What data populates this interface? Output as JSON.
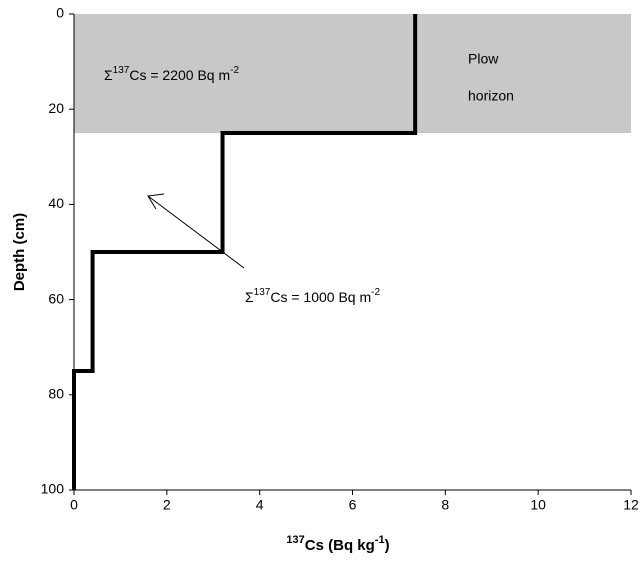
{
  "chart_data": {
    "type": "line",
    "xlabel": {
      "sup": "137",
      "text": "Cs (Bq kg",
      "sup2": "-1",
      "end": ")"
    },
    "ylabel": "Depth (cm)",
    "xlim": [
      0,
      12
    ],
    "xticks": [
      0,
      2,
      4,
      6,
      8,
      10,
      12
    ],
    "ylim": [
      0,
      100
    ],
    "yticks": [
      0,
      20,
      40,
      60,
      80,
      100
    ],
    "y_inverted": true,
    "series": [
      {
        "color": "#000000",
        "x": [
          7.35,
          7.35,
          3.2,
          3.2,
          0.4,
          0.4,
          0,
          0
        ],
        "y": [
          0,
          25,
          25,
          50,
          50,
          75,
          75,
          100
        ]
      }
    ],
    "shaded_band": {
      "y": [
        0,
        25
      ],
      "color": "#c8c8c8",
      "label": [
        "Plow",
        "horizon"
      ]
    },
    "annotations": [
      {
        "prefix": "Σ",
        "sup": "137",
        "text": "Cs = 2200 Bq m",
        "sup2": "-2"
      },
      {
        "prefix": "Σ",
        "sup": "137",
        "text": "Cs = 1000 Bq m",
        "sup2": "-2"
      }
    ]
  }
}
